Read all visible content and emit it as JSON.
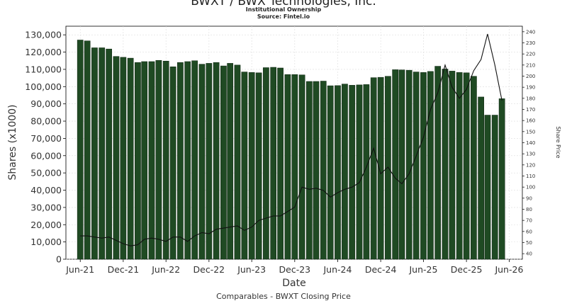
{
  "chart_data": {
    "type": "bar",
    "title": "BWXT / BWX Technologies, Inc.",
    "subtitle": "Institutional Ownership",
    "source": "Source: Fintel.io",
    "footer": "Comparables - BWXT Closing Price",
    "xlabel": "Date",
    "ylabel": "Shares (x1000)",
    "y2label": "Share Price",
    "ylim": [
      0,
      135000
    ],
    "y2lim": [
      35,
      245
    ],
    "yticks": [
      "0",
      "10,000",
      "20,000",
      "30,000",
      "40,000",
      "50,000",
      "60,000",
      "70,000",
      "80,000",
      "90,000",
      "100,000",
      "110,000",
      "120,000",
      "130,000"
    ],
    "y2ticks": [
      "40",
      "50",
      "60",
      "70",
      "80",
      "90",
      "100",
      "110",
      "120",
      "130",
      "140",
      "150",
      "160",
      "170",
      "180",
      "190",
      "200",
      "210",
      "220",
      "230",
      "240"
    ],
    "xticks": [
      "Jun-21",
      "Dec-21",
      "Jun-22",
      "Dec-22",
      "Jun-23",
      "Dec-23",
      "Jun-24",
      "Dec-24",
      "Jun-25",
      "Dec-25",
      "Jun-26"
    ],
    "grid": true,
    "bar_color": "#1f4a23",
    "line_color": "#111111",
    "shares_series": {
      "name": "Shares",
      "values": [
        127000,
        126500,
        122500,
        122500,
        121800,
        117500,
        117000,
        116500,
        114000,
        114500,
        114500,
        115200,
        114800,
        111500,
        114000,
        114500,
        115000,
        113000,
        113500,
        114000,
        112000,
        113500,
        112500,
        108500,
        108200,
        108000,
        111000,
        111200,
        110800,
        107000,
        107000,
        106800,
        103000,
        103000,
        103200,
        100500,
        100600,
        101500,
        100800,
        101000,
        101200,
        105200,
        105400,
        106000,
        109800,
        109700,
        109500,
        108500,
        108200,
        108800,
        111800,
        110200,
        109000,
        108200,
        108000,
        106000,
        94000,
        83500,
        83500,
        93000
      ]
    },
    "price_series": {
      "name": "Closing Price",
      "points": [
        [
          "2021-06-15",
          56
        ],
        [
          "2021-07-15",
          56
        ],
        [
          "2021-08-15",
          55
        ],
        [
          "2021-09-15",
          54
        ],
        [
          "2021-10-15",
          55
        ],
        [
          "2021-11-15",
          52
        ],
        [
          "2021-12-15",
          49
        ],
        [
          "2022-01-15",
          47
        ],
        [
          "2022-02-15",
          48
        ],
        [
          "2022-03-15",
          53
        ],
        [
          "2022-04-15",
          54
        ],
        [
          "2022-05-15",
          53
        ],
        [
          "2022-06-15",
          51
        ],
        [
          "2022-07-15",
          55
        ],
        [
          "2022-08-15",
          55
        ],
        [
          "2022-09-15",
          51
        ],
        [
          "2022-10-15",
          56
        ],
        [
          "2022-11-15",
          59
        ],
        [
          "2022-12-15",
          58
        ],
        [
          "2023-01-15",
          62
        ],
        [
          "2023-02-15",
          63
        ],
        [
          "2023-03-15",
          64
        ],
        [
          "2023-04-15",
          65
        ],
        [
          "2023-05-15",
          61
        ],
        [
          "2023-06-15",
          64
        ],
        [
          "2023-07-15",
          70
        ],
        [
          "2023-08-15",
          72
        ],
        [
          "2023-09-15",
          74
        ],
        [
          "2023-10-15",
          74
        ],
        [
          "2023-11-15",
          78
        ],
        [
          "2023-12-15",
          82
        ],
        [
          "2024-01-15",
          100
        ],
        [
          "2024-02-15",
          98
        ],
        [
          "2024-03-15",
          99
        ],
        [
          "2024-04-15",
          97
        ],
        [
          "2024-05-15",
          91
        ],
        [
          "2024-06-15",
          95
        ],
        [
          "2024-07-15",
          98
        ],
        [
          "2024-08-15",
          100
        ],
        [
          "2024-09-15",
          104
        ],
        [
          "2024-10-15",
          118
        ],
        [
          "2024-11-15",
          135
        ],
        [
          "2024-12-15",
          112
        ],
        [
          "2025-01-15",
          118
        ],
        [
          "2025-02-15",
          108
        ],
        [
          "2025-03-15",
          103
        ],
        [
          "2025-04-15",
          112
        ],
        [
          "2025-05-15",
          128
        ],
        [
          "2025-06-15",
          145
        ],
        [
          "2025-07-15",
          170
        ],
        [
          "2025-08-15",
          185
        ],
        [
          "2025-09-15",
          210
        ],
        [
          "2025-10-15",
          190
        ],
        [
          "2025-11-15",
          180
        ],
        [
          "2025-12-15",
          188
        ],
        [
          "2026-01-15",
          205
        ],
        [
          "2026-02-15",
          215
        ],
        [
          "2026-03-15",
          238
        ],
        [
          "2026-04-15",
          210
        ],
        [
          "2026-05-15",
          178
        ]
      ]
    }
  }
}
